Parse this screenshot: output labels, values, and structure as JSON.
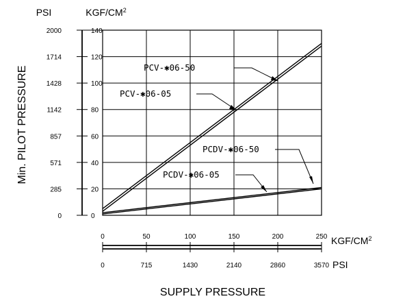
{
  "chart_data": {
    "type": "line",
    "title": "",
    "ylabel": "Min. PILOT PRESSURE",
    "xlabel": "SUPPLY PRESSURE",
    "y_unit_psi": "PSI",
    "y_unit_kgf": "KGF/CM",
    "y_unit_kgf_sup": "2",
    "x_unit_kgf": "KGF/CM",
    "x_unit_kgf_sup": "2",
    "x_unit_psi": "PSI",
    "xlim": [
      0,
      250
    ],
    "ylim": [
      0,
      140
    ],
    "grid": true,
    "y_ticks_kgf": [
      "0",
      "20",
      "40",
      "60",
      "80",
      "100",
      "120",
      "140"
    ],
    "y_ticks_psi": [
      "0",
      "285",
      "571",
      "857",
      "1142",
      "1428",
      "1714",
      "2000"
    ],
    "x_ticks_kgf": [
      "0",
      "50",
      "100",
      "150",
      "200",
      "250"
    ],
    "x_ticks_psi": [
      "0",
      "715",
      "1430",
      "2140",
      "2860",
      "3570"
    ],
    "series": [
      {
        "name": "PCV-✱06-50",
        "x": [
          0,
          250
        ],
        "y": [
          5,
          130
        ]
      },
      {
        "name": "PCV-✱06-05",
        "x": [
          0,
          250
        ],
        "y": [
          3,
          128
        ]
      },
      {
        "name": "PCDV-✱06-50",
        "x": [
          0,
          250
        ],
        "y": [
          2,
          21
        ]
      },
      {
        "name": "PCDV-✱06-05",
        "x": [
          0,
          250
        ],
        "y": [
          1,
          20
        ]
      }
    ]
  }
}
